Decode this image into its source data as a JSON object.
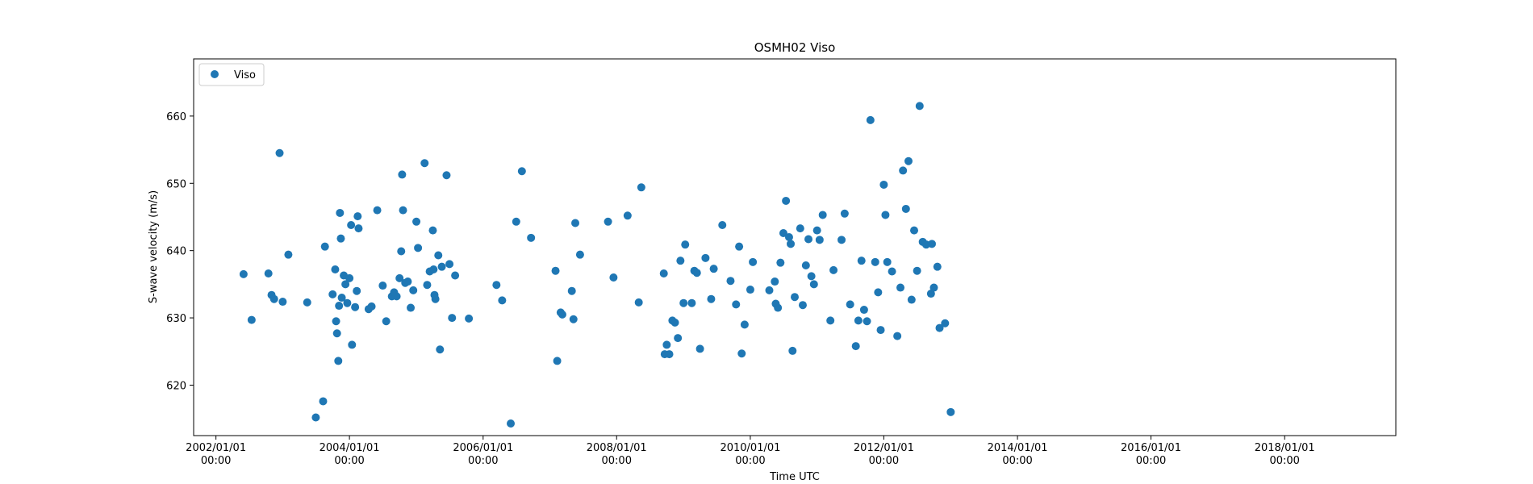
{
  "chart_data": {
    "type": "scatter",
    "title": "OSMH02 Viso",
    "xlabel": "Time UTC",
    "ylabel": "S-wave velocity (m/s)",
    "x_type": "date",
    "xlim": [
      "2001-09-01",
      "2019-09-01"
    ],
    "ylim": [
      612.5,
      668.5
    ],
    "grid": false,
    "legend_position": "top-left",
    "x_ticks": [
      {
        "date": "2002-01-01",
        "line1": "2002/01/01",
        "line2": "00:00"
      },
      {
        "date": "2004-01-01",
        "line1": "2004/01/01",
        "line2": "00:00"
      },
      {
        "date": "2006-01-01",
        "line1": "2006/01/01",
        "line2": "00:00"
      },
      {
        "date": "2008-01-01",
        "line1": "2008/01/01",
        "line2": "00:00"
      },
      {
        "date": "2010-01-01",
        "line1": "2010/01/01",
        "line2": "00:00"
      },
      {
        "date": "2012-01-01",
        "line1": "2012/01/01",
        "line2": "00:00"
      },
      {
        "date": "2014-01-01",
        "line1": "2014/01/01",
        "line2": "00:00"
      },
      {
        "date": "2016-01-01",
        "line1": "2016/01/01",
        "line2": "00:00"
      },
      {
        "date": "2018-01-01",
        "line1": "2018/01/01",
        "line2": "00:00"
      }
    ],
    "y_ticks": [
      620,
      630,
      640,
      650,
      660
    ],
    "series": [
      {
        "name": "Viso",
        "color": "#1f77b4",
        "marker": "circle",
        "points": [
          [
            "2002-06-01",
            636.5
          ],
          [
            "2002-07-15",
            629.7
          ],
          [
            "2002-10-15",
            636.6
          ],
          [
            "2002-11-01",
            633.4
          ],
          [
            "2002-11-15",
            632.8
          ],
          [
            "2002-12-15",
            654.5
          ],
          [
            "2003-01-01",
            632.4
          ],
          [
            "2003-02-01",
            639.4
          ],
          [
            "2003-05-15",
            632.3
          ],
          [
            "2003-07-01",
            615.2
          ],
          [
            "2003-08-10",
            617.6
          ],
          [
            "2003-08-20",
            640.6
          ],
          [
            "2003-10-01",
            633.5
          ],
          [
            "2003-10-15",
            637.2
          ],
          [
            "2003-10-20",
            629.5
          ],
          [
            "2003-10-25",
            627.7
          ],
          [
            "2003-11-01",
            623.6
          ],
          [
            "2003-11-05",
            631.8
          ],
          [
            "2003-11-10",
            645.6
          ],
          [
            "2003-11-15",
            641.8
          ],
          [
            "2003-11-20",
            633.0
          ],
          [
            "2003-12-01",
            636.3
          ],
          [
            "2003-12-10",
            635.0
          ],
          [
            "2003-12-20",
            632.2
          ],
          [
            "2004-01-01",
            635.9
          ],
          [
            "2004-01-10",
            643.8
          ],
          [
            "2004-01-15",
            626.0
          ],
          [
            "2004-02-01",
            631.6
          ],
          [
            "2004-02-10",
            634.0
          ],
          [
            "2004-02-15",
            645.1
          ],
          [
            "2004-02-20",
            643.3
          ],
          [
            "2004-04-15",
            631.3
          ],
          [
            "2004-05-01",
            631.7
          ],
          [
            "2004-06-01",
            646.0
          ],
          [
            "2004-07-01",
            634.8
          ],
          [
            "2004-07-20",
            629.5
          ],
          [
            "2004-08-20",
            633.2
          ],
          [
            "2004-09-01",
            633.8
          ],
          [
            "2004-09-15",
            633.2
          ],
          [
            "2004-10-01",
            635.9
          ],
          [
            "2004-10-10",
            639.9
          ],
          [
            "2004-10-15",
            651.3
          ],
          [
            "2004-10-20",
            646.0
          ],
          [
            "2004-11-01",
            635.2
          ],
          [
            "2004-11-15",
            635.4
          ],
          [
            "2004-12-01",
            631.5
          ],
          [
            "2004-12-15",
            634.1
          ],
          [
            "2005-01-01",
            644.3
          ],
          [
            "2005-01-10",
            640.4
          ],
          [
            "2005-02-15",
            653.0
          ],
          [
            "2005-03-01",
            634.9
          ],
          [
            "2005-03-15",
            636.9
          ],
          [
            "2005-04-01",
            643.0
          ],
          [
            "2005-04-05",
            637.2
          ],
          [
            "2005-04-10",
            633.4
          ],
          [
            "2005-04-15",
            632.8
          ],
          [
            "2005-05-01",
            639.3
          ],
          [
            "2005-05-10",
            625.3
          ],
          [
            "2005-05-20",
            637.6
          ],
          [
            "2005-06-15",
            651.2
          ],
          [
            "2005-07-01",
            638.0
          ],
          [
            "2005-07-15",
            630.0
          ],
          [
            "2005-08-01",
            636.3
          ],
          [
            "2005-10-15",
            629.9
          ],
          [
            "2006-03-15",
            634.9
          ],
          [
            "2006-04-15",
            632.6
          ],
          [
            "2006-06-01",
            614.3
          ],
          [
            "2006-07-01",
            644.3
          ],
          [
            "2006-08-01",
            651.8
          ],
          [
            "2006-09-20",
            641.9
          ],
          [
            "2007-02-01",
            637.0
          ],
          [
            "2007-02-10",
            623.6
          ],
          [
            "2007-03-01",
            630.8
          ],
          [
            "2007-03-10",
            630.5
          ],
          [
            "2007-05-01",
            634.0
          ],
          [
            "2007-05-10",
            629.8
          ],
          [
            "2007-05-20",
            644.1
          ],
          [
            "2007-06-15",
            639.4
          ],
          [
            "2007-11-15",
            644.3
          ],
          [
            "2007-12-15",
            636.0
          ],
          [
            "2008-03-01",
            645.2
          ],
          [
            "2008-05-01",
            632.3
          ],
          [
            "2008-05-15",
            649.4
          ],
          [
            "2008-09-15",
            636.6
          ],
          [
            "2008-09-20",
            624.6
          ],
          [
            "2008-10-01",
            626.0
          ],
          [
            "2008-10-15",
            624.6
          ],
          [
            "2008-11-01",
            629.6
          ],
          [
            "2008-11-15",
            629.3
          ],
          [
            "2008-12-01",
            627.0
          ],
          [
            "2008-12-15",
            638.5
          ],
          [
            "2009-01-01",
            632.2
          ],
          [
            "2009-01-10",
            640.9
          ],
          [
            "2009-02-15",
            632.2
          ],
          [
            "2009-03-01",
            637.0
          ],
          [
            "2009-03-15",
            636.7
          ],
          [
            "2009-04-01",
            625.4
          ],
          [
            "2009-05-01",
            638.9
          ],
          [
            "2009-06-01",
            632.8
          ],
          [
            "2009-06-15",
            637.3
          ],
          [
            "2009-08-01",
            643.8
          ],
          [
            "2009-09-15",
            635.5
          ],
          [
            "2009-10-15",
            632.0
          ],
          [
            "2009-11-01",
            640.6
          ],
          [
            "2009-11-15",
            624.7
          ],
          [
            "2009-12-01",
            629.0
          ],
          [
            "2010-01-01",
            634.2
          ],
          [
            "2010-01-15",
            638.3
          ],
          [
            "2010-04-15",
            634.1
          ],
          [
            "2010-05-15",
            635.4
          ],
          [
            "2010-05-20",
            632.1
          ],
          [
            "2010-06-01",
            631.5
          ],
          [
            "2010-06-15",
            638.2
          ],
          [
            "2010-07-01",
            642.6
          ],
          [
            "2010-07-15",
            647.4
          ],
          [
            "2010-08-01",
            642.0
          ],
          [
            "2010-08-10",
            641.0
          ],
          [
            "2010-08-20",
            625.1
          ],
          [
            "2010-09-01",
            633.1
          ],
          [
            "2010-10-01",
            643.3
          ],
          [
            "2010-10-15",
            631.9
          ],
          [
            "2010-11-01",
            637.8
          ],
          [
            "2010-11-15",
            641.7
          ],
          [
            "2010-12-01",
            636.2
          ],
          [
            "2010-12-15",
            635.0
          ],
          [
            "2011-01-01",
            643.0
          ],
          [
            "2011-01-15",
            641.6
          ],
          [
            "2011-02-01",
            645.3
          ],
          [
            "2011-03-15",
            629.6
          ],
          [
            "2011-04-01",
            637.1
          ],
          [
            "2011-05-15",
            641.6
          ],
          [
            "2011-06-01",
            645.5
          ],
          [
            "2011-07-01",
            632.0
          ],
          [
            "2011-08-01",
            625.8
          ],
          [
            "2011-08-15",
            629.6
          ],
          [
            "2011-09-01",
            638.5
          ],
          [
            "2011-09-15",
            631.2
          ],
          [
            "2011-10-01",
            629.5
          ],
          [
            "2011-10-20",
            659.4
          ],
          [
            "2011-11-15",
            638.3
          ],
          [
            "2011-12-01",
            633.8
          ],
          [
            "2011-12-15",
            628.2
          ],
          [
            "2012-01-01",
            649.8
          ],
          [
            "2012-01-10",
            645.3
          ],
          [
            "2012-01-20",
            638.3
          ],
          [
            "2012-02-15",
            636.9
          ],
          [
            "2012-03-15",
            627.3
          ],
          [
            "2012-04-01",
            634.5
          ],
          [
            "2012-04-15",
            651.9
          ],
          [
            "2012-05-01",
            646.2
          ],
          [
            "2012-05-15",
            653.3
          ],
          [
            "2012-06-01",
            632.7
          ],
          [
            "2012-06-15",
            643.0
          ],
          [
            "2012-07-01",
            637.0
          ],
          [
            "2012-07-15",
            661.5
          ],
          [
            "2012-08-01",
            641.3
          ],
          [
            "2012-08-20",
            640.9
          ],
          [
            "2012-09-15",
            633.6
          ],
          [
            "2012-09-20",
            641.0
          ],
          [
            "2012-10-01",
            634.5
          ],
          [
            "2012-10-20",
            637.6
          ],
          [
            "2012-11-01",
            628.5
          ],
          [
            "2012-12-01",
            629.2
          ],
          [
            "2013-01-01",
            616.0
          ]
        ]
      }
    ]
  }
}
